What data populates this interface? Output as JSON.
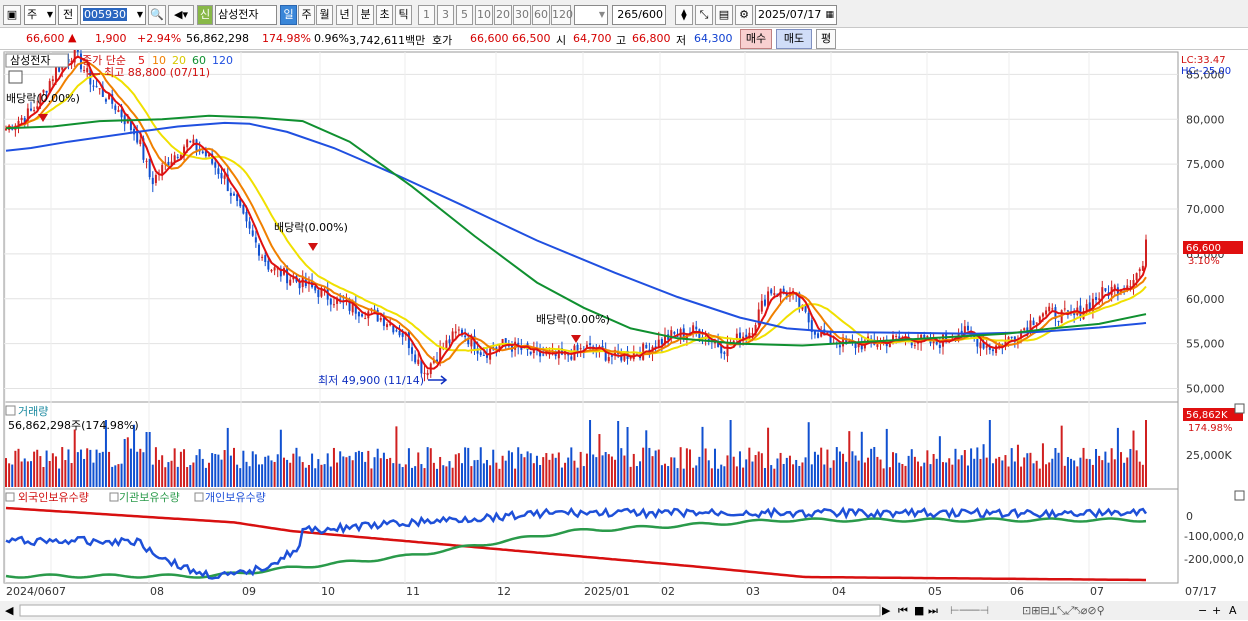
{
  "toolbar": {
    "period_select": "주",
    "stock_code": "005930",
    "stock_name": "삼성전자",
    "new_badge": "신",
    "prev_label": "전",
    "period_buttons": [
      "일",
      "주",
      "월",
      "년",
      "분",
      "초",
      "틱"
    ],
    "interval_buttons": [
      "1",
      "3",
      "5",
      "10",
      "20",
      "30",
      "60",
      "120"
    ],
    "count": "265",
    "count_total": "/600",
    "date": "2025/07/17"
  },
  "quote": {
    "price": "66,600",
    "change": "1,900",
    "change_pct": "+2.94%",
    "volume": "56,862,298",
    "volume_pct": "174.98%",
    "turnover_pct": "0.96%",
    "amount": "3,742,611백만",
    "bid_label": "호가",
    "ask": "66,600",
    "bid": "66,500",
    "open_label": "시",
    "open": "64,700",
    "high_label": "고",
    "high": "66,800",
    "low_label": "저",
    "low": "64,300",
    "buy_button": "매수",
    "sell_button": "매도",
    "eval_button": "평"
  },
  "price_panel": {
    "legend_name": "삼성전자",
    "legend_ma": "종가 단순",
    "ma_periods": [
      "5",
      "10",
      "20",
      "60",
      "120"
    ],
    "lc": "LC:33.47",
    "hc": "HC:-25.00",
    "current_price": "66,600",
    "current_pct": "3.10%",
    "high_note": "최고 88,800 (07/11)",
    "low_note": "최저 49,900 (11/14)",
    "dividend_labels": [
      "배당락(0.00%)",
      "배당락(0.00%)",
      "배당락(0.00%)"
    ],
    "y_ticks": [
      "85,000",
      "80,000",
      "75,000",
      "70,000",
      "65,000",
      "60,000",
      "55,000",
      "50,000"
    ]
  },
  "volume_panel": {
    "title": "거래량",
    "value": "56,862,298주(174.98%)",
    "current": "56,862K",
    "current_pct": "174.98%",
    "y_tick": "25,000K"
  },
  "holding_panel": {
    "legend": [
      "외국인보유수량",
      "기관보유수량",
      "개인보유수량"
    ],
    "y_ticks": [
      "0",
      "-100,000,0",
      "-200,000,0"
    ]
  },
  "x_axis": {
    "labels": [
      "2024/06",
      "07",
      "08",
      "09",
      "10",
      "11",
      "12",
      "2025/01",
      "02",
      "03",
      "04",
      "05",
      "06",
      "07"
    ],
    "end_label": "07/17"
  },
  "colors": {
    "ma5": "#e01010",
    "ma10": "#f08000",
    "ma20": "#f0e000",
    "ma60": "#109030",
    "ma120": "#2050e0",
    "up": "#d02020",
    "down": "#1050d0",
    "foreign": "#1e50d8",
    "institution": "#2a9a4a",
    "individual": "#d81010"
  },
  "chart_data": {
    "type": "line",
    "title": "삼성전자",
    "y_range": [
      48500,
      87500
    ],
    "series": [
      {
        "name": "120",
        "values": [
          [
            0,
            76500
          ],
          [
            8,
            76800
          ],
          [
            20,
            77500
          ],
          [
            40,
            78500
          ],
          [
            55,
            79200
          ],
          [
            70,
            79600
          ],
          [
            78,
            79500
          ],
          [
            90,
            78600
          ],
          [
            105,
            76800
          ],
          [
            125,
            73800
          ],
          [
            145,
            70600
          ],
          [
            170,
            66500
          ],
          [
            195,
            62900
          ],
          [
            215,
            60200
          ],
          [
            235,
            57900
          ],
          [
            250,
            56700
          ],
          [
            265,
            56300
          ],
          [
            290,
            56200
          ],
          [
            310,
            56100
          ],
          [
            330,
            56300
          ],
          [
            350,
            56800
          ],
          [
            365,
            57300
          ]
        ]
      },
      {
        "name": "60",
        "values": [
          [
            0,
            79000
          ],
          [
            15,
            79200
          ],
          [
            30,
            79800
          ],
          [
            50,
            80000
          ],
          [
            65,
            80400
          ],
          [
            80,
            80200
          ],
          [
            95,
            79800
          ],
          [
            110,
            77500
          ],
          [
            130,
            72500
          ],
          [
            150,
            67000
          ],
          [
            170,
            61800
          ],
          [
            185,
            59000
          ],
          [
            200,
            56700
          ],
          [
            215,
            55600
          ],
          [
            235,
            55000
          ],
          [
            255,
            54800
          ],
          [
            275,
            55200
          ],
          [
            290,
            55500
          ],
          [
            305,
            55800
          ],
          [
            320,
            56100
          ],
          [
            335,
            56700
          ],
          [
            350,
            57200
          ],
          [
            365,
            58300
          ]
        ]
      }
    ]
  }
}
